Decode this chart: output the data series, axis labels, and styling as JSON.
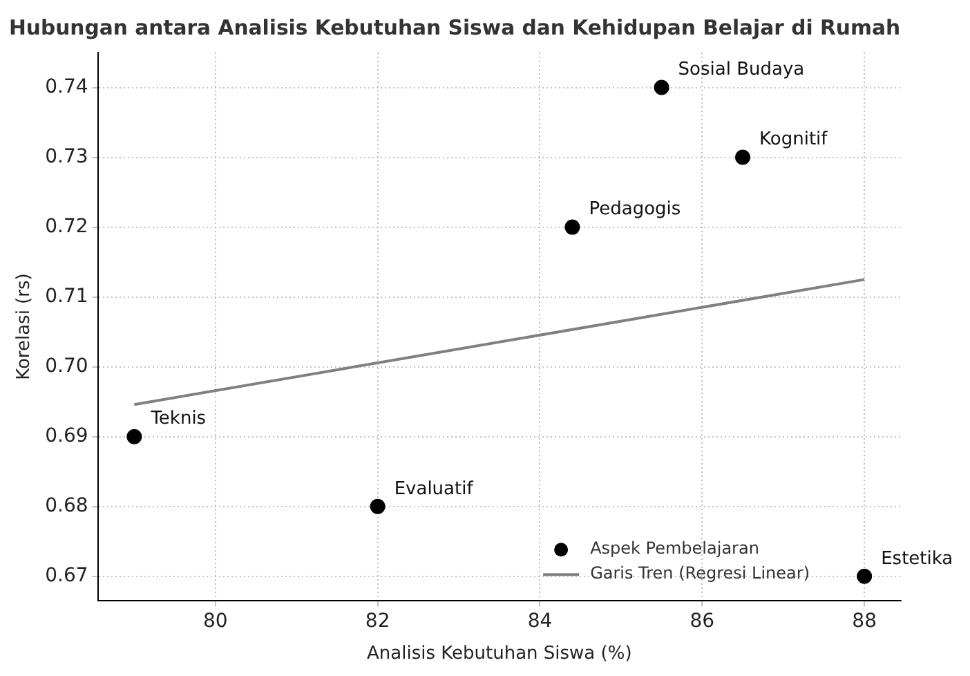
{
  "chart_data": {
    "type": "scatter",
    "title": "Hubungan antara Analisis Kebutuhan Siswa dan Kehidupan Belajar di Rumah",
    "xlabel": "Analisis Kebutuhan Siswa (%)",
    "ylabel": "Korelasi (rs)",
    "series": [
      {
        "name": "Aspek Pembelajaran",
        "type": "scatter",
        "marker": "circle",
        "color": "#000000",
        "x": [
          79,
          82,
          84.4,
          85.5,
          86.5,
          88
        ],
        "values": [
          0.69,
          0.68,
          0.72,
          0.74,
          0.73,
          0.67
        ]
      },
      {
        "name": "Garis Tren (Regresi Linear)",
        "type": "line",
        "color": "#808080",
        "x": [
          79,
          88
        ],
        "values": [
          0.6946,
          0.7125
        ]
      }
    ],
    "annotations": [
      {
        "text": "Teknis",
        "x": 79,
        "y": 0.69
      },
      {
        "text": "Evaluatif",
        "x": 82,
        "y": 0.68
      },
      {
        "text": "Pedagogis",
        "x": 84.4,
        "y": 0.72
      },
      {
        "text": "Sosial Budaya",
        "x": 85.5,
        "y": 0.74
      },
      {
        "text": "Kognitif",
        "x": 86.5,
        "y": 0.73
      },
      {
        "text": "Estetika",
        "x": 88,
        "y": 0.67
      }
    ],
    "xlim": [
      78.55,
      88.45
    ],
    "xticks": [
      80,
      82,
      84,
      86,
      88
    ],
    "ylim": [
      0.6665,
      0.745
    ],
    "yticks": [
      {
        "value": 0.67,
        "label": "0.67"
      },
      {
        "value": 0.68,
        "label": "0.68"
      },
      {
        "value": 0.69,
        "label": "0.69"
      },
      {
        "value": 0.7,
        "label": "0.70"
      },
      {
        "value": 0.71,
        "label": "0.71"
      },
      {
        "value": 0.72,
        "label": "0.72"
      },
      {
        "value": 0.73,
        "label": "0.73"
      },
      {
        "value": 0.74,
        "label": "0.74"
      }
    ],
    "grid": true,
    "legend": "bottom right",
    "line_style": "solid"
  }
}
